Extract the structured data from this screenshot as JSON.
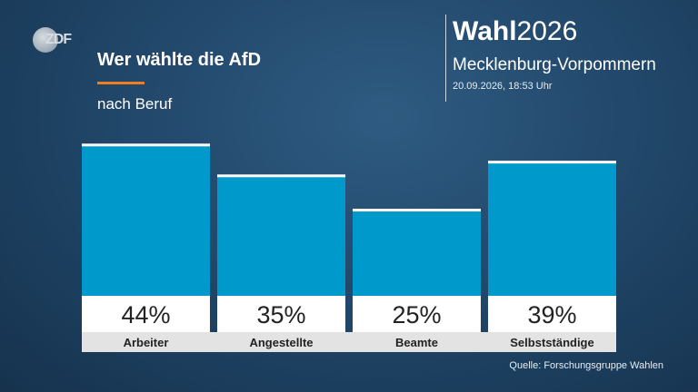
{
  "logo": {
    "text": "ZDF"
  },
  "header": {
    "title": "Wer wählte die AfD",
    "subtitle": "nach Beruf",
    "brand_bold": "Wahl",
    "brand_year": "2026",
    "region": "Mecklenburg-Vorpommern",
    "timestamp": "20.09.2026, 18:53 Uhr"
  },
  "footer": {
    "source": "Quelle: Forschungsgruppe Wahlen"
  },
  "colors": {
    "bar": "#0099cc",
    "bar_top": "#ffffff",
    "value_box": "#ffffff",
    "label_box": "#e3e3e3",
    "accent": "#f07d22"
  },
  "chart_data": {
    "type": "bar",
    "categories": [
      "Arbeiter",
      "Angestellte",
      "Beamte",
      "Selbstständige"
    ],
    "values": [
      44,
      35,
      25,
      39
    ],
    "value_labels": [
      "44%",
      "35%",
      "25%",
      "39%"
    ],
    "title": "Wer wählte die AfD",
    "subtitle": "nach Beruf",
    "ylim": [
      0,
      45
    ],
    "grid": false,
    "legend": "none"
  }
}
